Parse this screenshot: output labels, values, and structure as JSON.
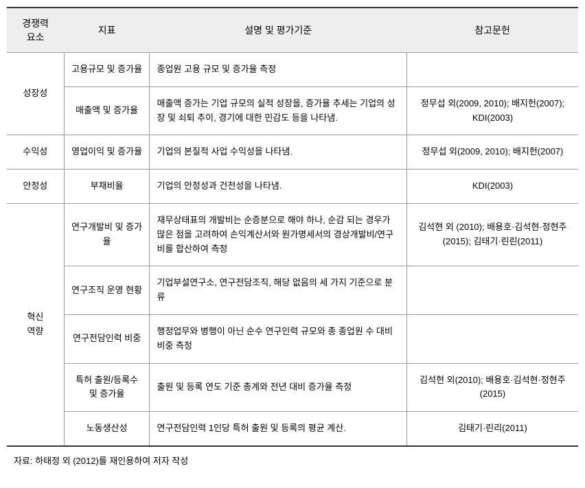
{
  "headers": {
    "category": "경쟁력\n요소",
    "indicator": "지표",
    "description": "설명 및 평가기준",
    "reference": "참고문헌"
  },
  "rows": [
    {
      "category": "성장성",
      "categoryRowspan": 2,
      "indicator": "고용규모 및 증가율",
      "description": "종업원 고용 규모 및 증가율 측정",
      "reference": ""
    },
    {
      "indicator": "매출액 및 증가율",
      "description": "매출액 증가는 기업 규모의 실적 성장을, 증가율 추세는 기업의 성장 및 쇠퇴 추이, 경기에 대한 민감도 등을 나타냄.",
      "reference": "정무섭 외(2009, 2010); 배지헌(2007); KDI(2003)"
    },
    {
      "category": "수익성",
      "categoryRowspan": 1,
      "indicator": "영업이익 및 증가율",
      "description": "기업의 본질적 사업 수익성을 나타냄.",
      "reference": "정무섭 외(2009, 2010); 배지헌(2007)"
    },
    {
      "category": "안정성",
      "categoryRowspan": 1,
      "indicator": "부채비율",
      "description": "기업의 안정성과 건전성을 나타냄.",
      "reference": "KDI(2003)"
    },
    {
      "category": "혁신\n역량",
      "categoryRowspan": 5,
      "indicator": "연구개발비 및 증가율",
      "description": "재무상태표의 개발비는 순증분으로 해야 하나, 순감 되는 경우가 많은 점을 고려하여 손익계산서와 원가명세서의 경상개발비/연구비를 합산하여 측정",
      "reference": "김석현 외 (2010); 배용호·김석현·정현주(2015); 김태기·린린(2011)"
    },
    {
      "indicator": "연구조직 운영 현황",
      "description": "기업부설연구소, 연구전담조직, 해당 없음의 세 가지 기준으로 분류",
      "reference": ""
    },
    {
      "indicator": "연구전담인력 비중",
      "description": "행정업무와 병행이 아닌 순수 연구인력 규모와 총 종업원 수 대비 비중 측정",
      "reference": ""
    },
    {
      "indicator": "특허 출원/등록수 및 증가율",
      "description": "출원 및 등록 연도 기준 총계와 전년 대비 증가율 측정",
      "reference": "김석현 외(2010); 배용호·김석현·정현주(2015)"
    },
    {
      "indicator": "노동생산성",
      "description": "연구전담인력 1인당 특허 출원 및 등록의 평균 계산.",
      "reference": "김태기·린리(2011)"
    }
  ],
  "sourceNote": "자료: 하태정 외 (2012)를 재인용하여 저자 작성"
}
